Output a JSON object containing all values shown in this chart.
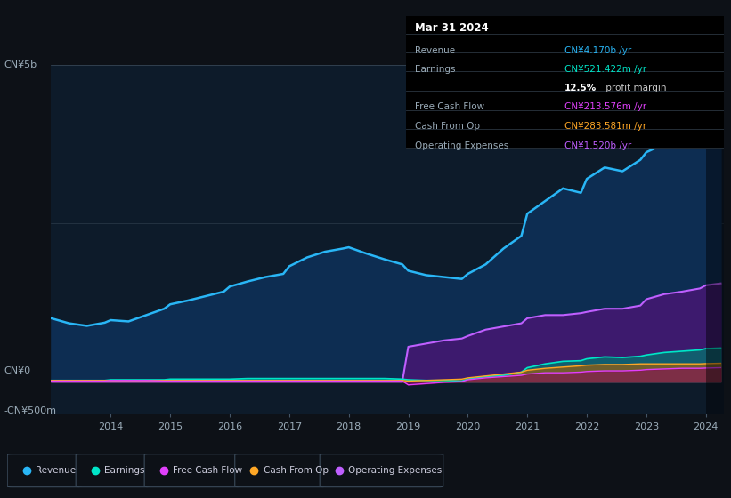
{
  "bg_color": "#0d1117",
  "chart_bg": "#0d1b2a",
  "years": [
    2013.0,
    2013.3,
    2013.6,
    2013.9,
    2014.0,
    2014.3,
    2014.6,
    2014.9,
    2015.0,
    2015.3,
    2015.6,
    2015.9,
    2016.0,
    2016.3,
    2016.6,
    2016.9,
    2017.0,
    2017.3,
    2017.6,
    2017.9,
    2018.0,
    2018.3,
    2018.6,
    2018.9,
    2019.0,
    2019.3,
    2019.6,
    2019.9,
    2020.0,
    2020.3,
    2020.6,
    2020.9,
    2021.0,
    2021.3,
    2021.6,
    2021.9,
    2022.0,
    2022.3,
    2022.6,
    2022.9,
    2023.0,
    2023.3,
    2023.6,
    2023.9,
    2024.0,
    2024.25
  ],
  "revenue": [
    1.0,
    0.92,
    0.88,
    0.93,
    0.97,
    0.95,
    1.05,
    1.15,
    1.22,
    1.28,
    1.35,
    1.42,
    1.5,
    1.58,
    1.65,
    1.7,
    1.82,
    1.96,
    2.05,
    2.1,
    2.12,
    2.02,
    1.93,
    1.85,
    1.75,
    1.68,
    1.65,
    1.62,
    1.7,
    1.85,
    2.1,
    2.3,
    2.65,
    2.85,
    3.05,
    2.98,
    3.2,
    3.38,
    3.32,
    3.5,
    3.62,
    3.75,
    3.9,
    4.05,
    4.17,
    4.25
  ],
  "earnings": [
    0.02,
    0.02,
    0.02,
    0.02,
    0.03,
    0.03,
    0.03,
    0.03,
    0.04,
    0.04,
    0.04,
    0.04,
    0.04,
    0.05,
    0.05,
    0.05,
    0.05,
    0.05,
    0.05,
    0.05,
    0.05,
    0.05,
    0.05,
    0.04,
    0.03,
    0.02,
    0.02,
    0.01,
    0.04,
    0.08,
    0.1,
    0.15,
    0.22,
    0.28,
    0.32,
    0.33,
    0.36,
    0.39,
    0.38,
    0.4,
    0.42,
    0.46,
    0.48,
    0.5,
    0.521,
    0.53
  ],
  "free_cash_flow": [
    0.01,
    0.01,
    0.01,
    0.01,
    0.02,
    0.02,
    0.02,
    0.01,
    0.01,
    0.01,
    0.01,
    0.01,
    0.01,
    0.01,
    0.01,
    0.01,
    0.01,
    0.01,
    0.01,
    0.01,
    0.01,
    0.01,
    0.01,
    0.01,
    -0.05,
    -0.03,
    -0.01,
    0.0,
    0.03,
    0.06,
    0.08,
    0.1,
    0.12,
    0.14,
    0.14,
    0.15,
    0.16,
    0.17,
    0.17,
    0.18,
    0.19,
    0.2,
    0.21,
    0.21,
    0.214,
    0.22
  ],
  "cash_from_op": [
    0.02,
    0.02,
    0.02,
    0.02,
    0.02,
    0.02,
    0.02,
    0.02,
    0.02,
    0.02,
    0.02,
    0.02,
    0.02,
    0.02,
    0.02,
    0.02,
    0.02,
    0.02,
    0.02,
    0.02,
    0.02,
    0.02,
    0.02,
    0.02,
    0.01,
    0.02,
    0.03,
    0.04,
    0.06,
    0.09,
    0.12,
    0.15,
    0.18,
    0.21,
    0.23,
    0.25,
    0.26,
    0.27,
    0.27,
    0.28,
    0.28,
    0.28,
    0.28,
    0.28,
    0.284,
    0.29
  ],
  "op_expenses": [
    0.0,
    0.0,
    0.0,
    0.0,
    0.0,
    0.0,
    0.0,
    0.0,
    0.0,
    0.0,
    0.0,
    0.0,
    0.0,
    0.0,
    0.0,
    0.0,
    0.0,
    0.0,
    0.0,
    0.0,
    0.0,
    0.0,
    0.0,
    0.0,
    0.55,
    0.6,
    0.65,
    0.68,
    0.72,
    0.82,
    0.87,
    0.92,
    1.0,
    1.05,
    1.05,
    1.08,
    1.1,
    1.15,
    1.15,
    1.2,
    1.3,
    1.38,
    1.42,
    1.47,
    1.52,
    1.55
  ],
  "ylim": [
    -0.5,
    5.0
  ],
  "xticks": [
    2014,
    2015,
    2016,
    2017,
    2018,
    2019,
    2020,
    2021,
    2022,
    2023,
    2024
  ],
  "revenue_color": "#29b6f6",
  "earnings_color": "#00e5c8",
  "fcf_color": "#e040fb",
  "cfop_color": "#ffa726",
  "opex_color": "#bf5fff",
  "legend_items": [
    {
      "label": "Revenue",
      "color": "#29b6f6"
    },
    {
      "label": "Earnings",
      "color": "#00e5c8"
    },
    {
      "label": "Free Cash Flow",
      "color": "#e040fb"
    },
    {
      "label": "Cash From Op",
      "color": "#ffa726"
    },
    {
      "label": "Operating Expenses",
      "color": "#bf5fff"
    }
  ],
  "tooltip": {
    "title": "Mar 31 2024",
    "rows": [
      {
        "label": "Revenue",
        "value": "CN¥4.170b /yr",
        "value_color": "#29b6f6"
      },
      {
        "label": "Earnings",
        "value": "CN¥521.422m /yr",
        "value_color": "#00e5c8"
      },
      {
        "label": "",
        "value1": "12.5%",
        "value2": " profit margin",
        "is_margin": true
      },
      {
        "label": "Free Cash Flow",
        "value": "CN¥213.576m /yr",
        "value_color": "#e040fb"
      },
      {
        "label": "Cash From Op",
        "value": "CN¥283.581m /yr",
        "value_color": "#ffa726"
      },
      {
        "label": "Operating Expenses",
        "value": "CN¥1.520b /yr",
        "value_color": "#bf5fff"
      }
    ]
  }
}
